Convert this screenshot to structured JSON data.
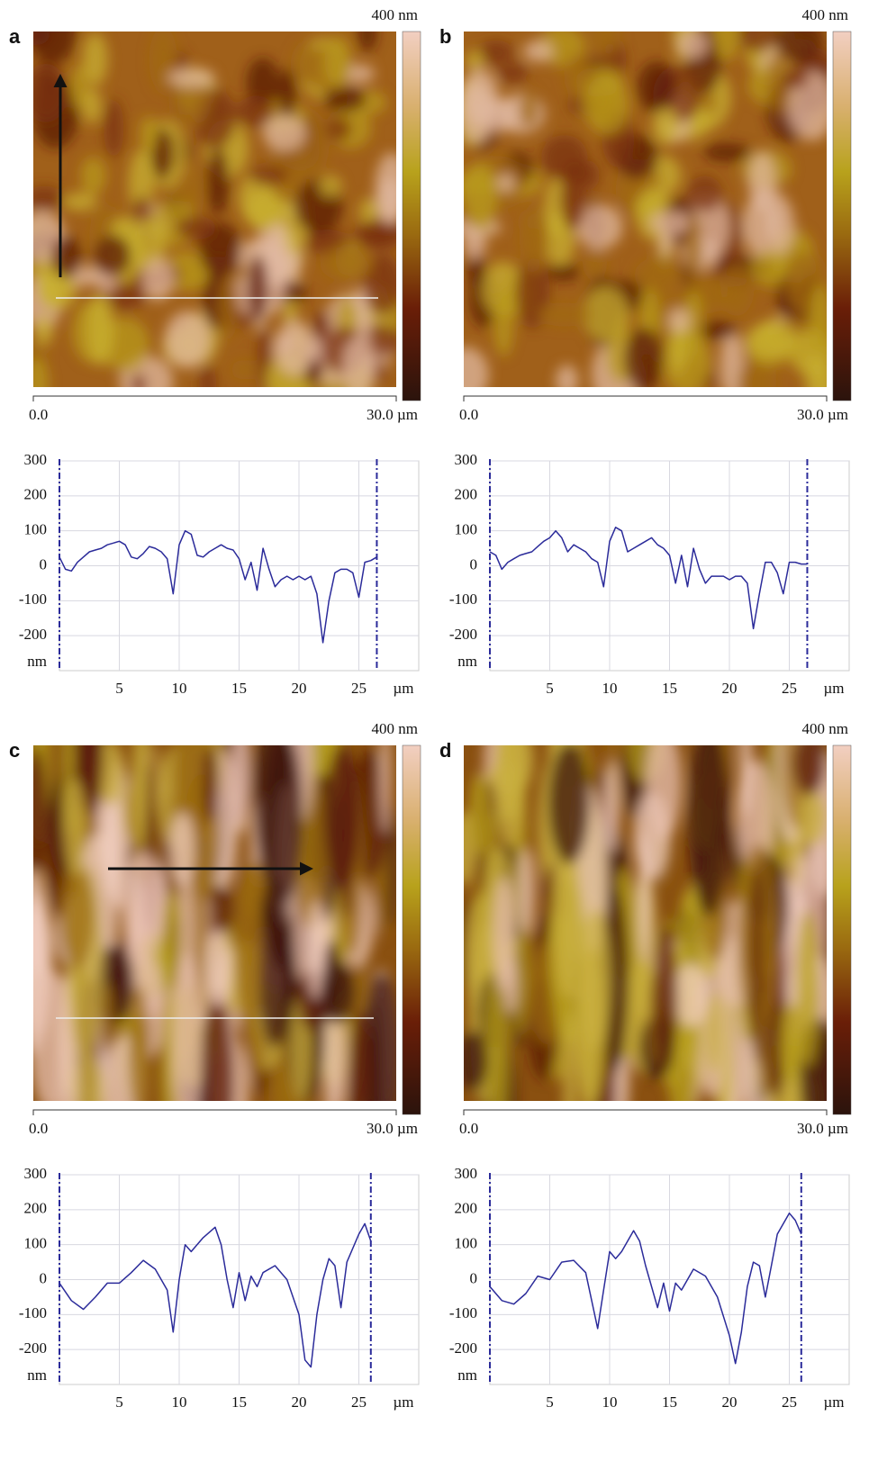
{
  "images": [
    {
      "label": "a",
      "colorbar_label": "400 nm",
      "scale_start": "0.0",
      "scale_end": "30.0 µm"
    },
    {
      "label": "b",
      "colorbar_label": "400 nm",
      "scale_start": "0.0",
      "scale_end": "30.0 µm"
    },
    {
      "label": "c",
      "colorbar_label": "400 nm",
      "scale_start": "0.0",
      "scale_end": "30.0 µm"
    },
    {
      "label": "d",
      "colorbar_label": "400 nm",
      "scale_start": "0.0",
      "scale_end": "30.0 µm"
    }
  ],
  "chart_data": [
    {
      "type": "line",
      "x_label": "µm",
      "y_label": "nm",
      "x": [
        0,
        0.5,
        1,
        1.5,
        2,
        2.5,
        3,
        3.5,
        4,
        4.5,
        5,
        5.5,
        6,
        6.5,
        7,
        7.5,
        8,
        8.5,
        9,
        9.5,
        10,
        10.5,
        11,
        11.5,
        12,
        12.5,
        13,
        13.5,
        14,
        14.5,
        15,
        15.5,
        16,
        16.5,
        17,
        17.5,
        18,
        18.5,
        19,
        19.5,
        20,
        20.5,
        21,
        21.5,
        22,
        22.5,
        23,
        23.5,
        24,
        24.5,
        25,
        25.5,
        26,
        26.5
      ],
      "series": [
        {
          "color": "#2b2b9a",
          "values": [
            25,
            -10,
            -15,
            10,
            25,
            40,
            45,
            50,
            60,
            65,
            70,
            60,
            25,
            20,
            35,
            55,
            50,
            40,
            20,
            -80,
            60,
            100,
            90,
            30,
            25,
            40,
            50,
            60,
            50,
            45,
            20,
            -40,
            10,
            -70,
            50,
            -10,
            -60,
            -40,
            -30,
            -40,
            -30,
            -40,
            -30,
            -80,
            -220,
            -100,
            -20,
            -10,
            -10,
            -20,
            -90,
            10,
            15,
            25
          ]
        }
      ],
      "xlim": [
        0,
        30
      ],
      "ylim": [
        -300,
        300
      ],
      "xticks": [
        5,
        10,
        15,
        20,
        25
      ],
      "yticks": [
        300,
        200,
        100,
        0,
        -100,
        -200
      ],
      "grid": true,
      "cursors": [
        0,
        26.5
      ]
    },
    {
      "type": "line",
      "x_label": "µm",
      "y_label": "nm",
      "x": [
        0,
        0.5,
        1,
        1.5,
        2,
        2.5,
        3,
        3.5,
        4,
        4.5,
        5,
        5.5,
        6,
        6.5,
        7,
        7.5,
        8,
        8.5,
        9,
        9.5,
        10,
        10.5,
        11,
        11.5,
        12,
        12.5,
        13,
        13.5,
        14,
        14.5,
        15,
        15.5,
        16,
        16.5,
        17,
        17.5,
        18,
        18.5,
        19,
        19.5,
        20,
        20.5,
        21,
        21.5,
        22,
        22.5,
        23,
        23.5,
        24,
        24.5,
        25,
        25.5,
        26,
        26.5
      ],
      "series": [
        {
          "color": "#2b2b9a",
          "values": [
            40,
            30,
            -10,
            10,
            20,
            30,
            35,
            40,
            55,
            70,
            80,
            100,
            80,
            40,
            60,
            50,
            40,
            20,
            10,
            -60,
            70,
            110,
            100,
            40,
            50,
            60,
            70,
            80,
            60,
            50,
            30,
            -50,
            30,
            -60,
            50,
            -10,
            -50,
            -30,
            -30,
            -30,
            -40,
            -30,
            -30,
            -50,
            -180,
            -80,
            10,
            10,
            -20,
            -80,
            10,
            10,
            5,
            5
          ]
        }
      ],
      "xlim": [
        0,
        30
      ],
      "ylim": [
        -300,
        300
      ],
      "xticks": [
        5,
        10,
        15,
        20,
        25
      ],
      "yticks": [
        300,
        200,
        100,
        0,
        -100,
        -200
      ],
      "grid": true,
      "cursors": [
        0,
        26.5
      ]
    },
    {
      "type": "line",
      "x_label": "µm",
      "y_label": "nm",
      "x": [
        0,
        1,
        2,
        3,
        4,
        5,
        6,
        7,
        8,
        9,
        9.5,
        10,
        10.5,
        11,
        12,
        13,
        13.5,
        14,
        14.5,
        15,
        15.5,
        16,
        16.5,
        17,
        18,
        19,
        20,
        20.5,
        21,
        21.5,
        22,
        22.5,
        23,
        23.5,
        24,
        25,
        25.5,
        26
      ],
      "series": [
        {
          "color": "#2b2b9a",
          "values": [
            -10,
            -60,
            -85,
            -50,
            -10,
            -10,
            20,
            55,
            30,
            -30,
            -150,
            0,
            100,
            80,
            120,
            150,
            100,
            0,
            -80,
            20,
            -60,
            10,
            -20,
            20,
            40,
            0,
            -100,
            -230,
            -250,
            -100,
            0,
            60,
            40,
            -80,
            50,
            130,
            160,
            110
          ]
        }
      ],
      "xlim": [
        0,
        30
      ],
      "ylim": [
        -300,
        300
      ],
      "xticks": [
        5,
        10,
        15,
        20,
        25
      ],
      "yticks": [
        300,
        200,
        100,
        0,
        -100,
        -200
      ],
      "grid": true,
      "cursors": [
        0,
        26
      ]
    },
    {
      "type": "line",
      "x_label": "µm",
      "y_label": "nm",
      "x": [
        0,
        1,
        2,
        3,
        4,
        5,
        6,
        7,
        8,
        9,
        9.5,
        10,
        10.5,
        11,
        12,
        12.5,
        13,
        14,
        14.5,
        15,
        15.5,
        16,
        17,
        18,
        19,
        20,
        20.5,
        21,
        21.5,
        22,
        22.5,
        23,
        23.5,
        24,
        25,
        25.5,
        26
      ],
      "series": [
        {
          "color": "#2b2b9a",
          "values": [
            -20,
            -60,
            -70,
            -40,
            10,
            0,
            50,
            55,
            20,
            -140,
            -30,
            80,
            60,
            80,
            140,
            110,
            40,
            -80,
            -10,
            -90,
            -10,
            -30,
            30,
            10,
            -50,
            -160,
            -240,
            -150,
            -20,
            50,
            40,
            -50,
            40,
            130,
            190,
            170,
            130
          ]
        }
      ],
      "xlim": [
        0,
        30
      ],
      "ylim": [
        -300,
        300
      ],
      "xticks": [
        5,
        10,
        15,
        20,
        25
      ],
      "yticks": [
        300,
        200,
        100,
        0,
        -100,
        -200
      ],
      "grid": true,
      "cursors": [
        0,
        26
      ]
    }
  ]
}
